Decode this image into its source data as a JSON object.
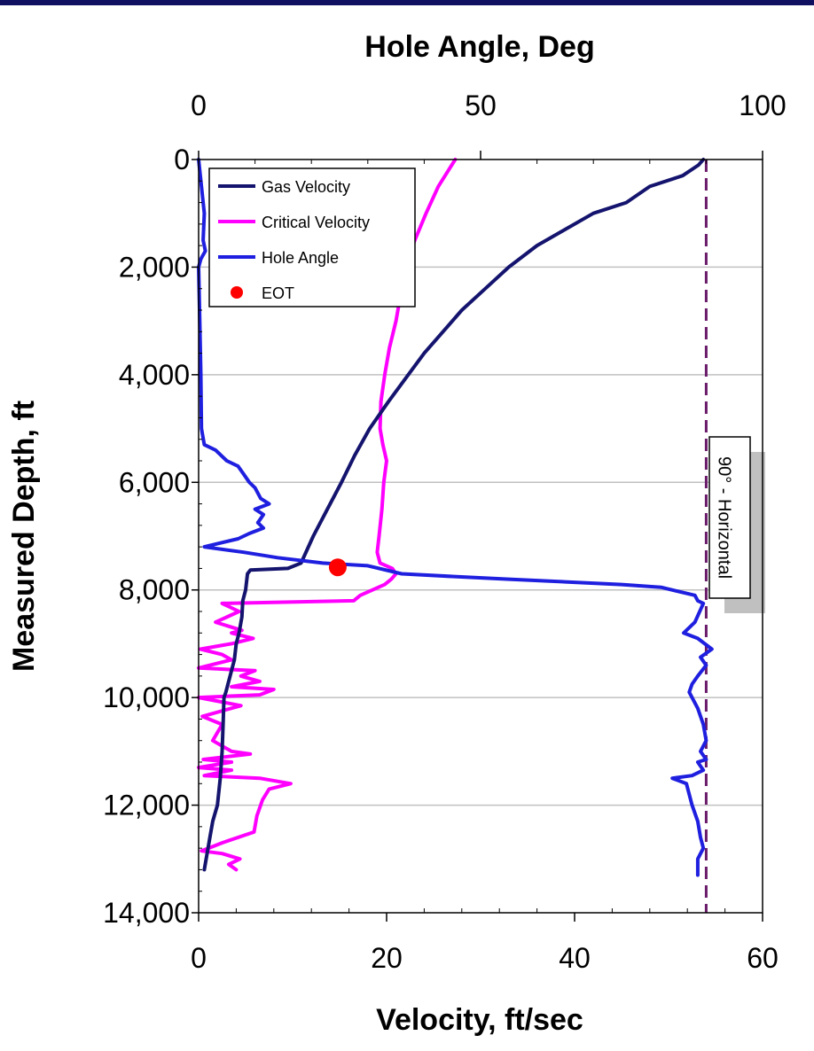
{
  "chart_data": {
    "type": "line",
    "title": "",
    "x_top": {
      "label": "Hole Angle, Deg",
      "range": [
        0,
        100
      ],
      "ticks": [
        "0",
        "50",
        "100"
      ]
    },
    "x_bottom": {
      "label": "Velocity, ft/sec",
      "range": [
        0,
        60
      ],
      "ticks": [
        "0",
        "20",
        "40",
        "60"
      ]
    },
    "y": {
      "label": "Measured Depth, ft",
      "range": [
        0,
        14000
      ],
      "inverted": true,
      "ticks": [
        "0",
        "2,000",
        "4,000",
        "6,000",
        "8,000",
        "10,000",
        "12,000",
        "14,000"
      ]
    },
    "grid": "horizontal",
    "legend": {
      "placement": "top-left"
    },
    "series": [
      {
        "name": "Gas Velocity",
        "axis": "bottom",
        "color": "#14146e",
        "points": [
          [
            53.7,
            0
          ],
          [
            53.2,
            100
          ],
          [
            51.5,
            300
          ],
          [
            48,
            500
          ],
          [
            45.5,
            800
          ],
          [
            42,
            1000
          ],
          [
            39,
            1300
          ],
          [
            36,
            1600
          ],
          [
            33,
            2000
          ],
          [
            30.5,
            2400
          ],
          [
            28,
            2800
          ],
          [
            26,
            3200
          ],
          [
            24,
            3600
          ],
          [
            22.3,
            4000
          ],
          [
            20.2,
            4500
          ],
          [
            18.2,
            5000
          ],
          [
            16.6,
            5500
          ],
          [
            15.2,
            6000
          ],
          [
            13.7,
            6500
          ],
          [
            12.2,
            7000
          ],
          [
            10.9,
            7500
          ],
          [
            9.5,
            7600
          ],
          [
            5.5,
            7630
          ],
          [
            5.2,
            7700
          ],
          [
            5.0,
            8000
          ],
          [
            4.7,
            8200
          ],
          [
            4.6,
            8500
          ],
          [
            4.3,
            8800
          ],
          [
            4.0,
            9000
          ],
          [
            3.8,
            9300
          ],
          [
            3.5,
            9500
          ],
          [
            3.2,
            9700
          ],
          [
            2.9,
            9900
          ],
          [
            2.7,
            10000
          ],
          [
            2.6,
            10500
          ],
          [
            2.5,
            11000
          ],
          [
            2.3,
            11500
          ],
          [
            2.0,
            12000
          ],
          [
            1.5,
            12300
          ],
          [
            1.2,
            12600
          ],
          [
            0.8,
            13000
          ],
          [
            0.6,
            13200
          ]
        ]
      },
      {
        "name": "Critical Velocity",
        "axis": "bottom",
        "color": "#ff00ff",
        "points": [
          [
            27.3,
            0
          ],
          [
            25.5,
            500
          ],
          [
            24.2,
            1000
          ],
          [
            23,
            1500
          ],
          [
            22,
            2000
          ],
          [
            21.5,
            2500
          ],
          [
            21,
            3000
          ],
          [
            20.3,
            3500
          ],
          [
            19.8,
            4000
          ],
          [
            19.4,
            4500
          ],
          [
            19.3,
            5000
          ],
          [
            19.6,
            5300
          ],
          [
            20,
            5600
          ],
          [
            19.7,
            6000
          ],
          [
            19.5,
            6500
          ],
          [
            19.2,
            7000
          ],
          [
            19,
            7300
          ],
          [
            19.3,
            7500
          ],
          [
            20.6,
            7600
          ],
          [
            21,
            7700
          ],
          [
            20.5,
            7800
          ],
          [
            19.8,
            7900
          ],
          [
            18.5,
            8000
          ],
          [
            17.2,
            8100
          ],
          [
            16.5,
            8200
          ],
          [
            2.5,
            8250
          ],
          [
            4.3,
            8400
          ],
          [
            1.8,
            8600
          ],
          [
            4.6,
            8750
          ],
          [
            3.5,
            8800
          ],
          [
            5.8,
            8900
          ],
          [
            3.5,
            9000
          ],
          [
            0.2,
            9100
          ],
          [
            2.5,
            9200
          ],
          [
            3.5,
            9300
          ],
          [
            0,
            9450
          ],
          [
            6.0,
            9500
          ],
          [
            4.5,
            9600
          ],
          [
            6.5,
            9700
          ],
          [
            3.5,
            9800
          ],
          [
            8,
            9850
          ],
          [
            6.5,
            9950
          ],
          [
            0,
            10000
          ],
          [
            4.5,
            10150
          ],
          [
            0.4,
            10350
          ],
          [
            2.5,
            10500
          ],
          [
            1.5,
            10800
          ],
          [
            3.5,
            11000
          ],
          [
            5.5,
            11050
          ],
          [
            0.5,
            11150
          ],
          [
            3.5,
            11200
          ],
          [
            0,
            11300
          ],
          [
            3.5,
            11350
          ],
          [
            0.6,
            11450
          ],
          [
            6.5,
            11500
          ],
          [
            9.8,
            11600
          ],
          [
            7.5,
            11700
          ],
          [
            6.8,
            11900
          ],
          [
            6.2,
            12200
          ],
          [
            5.9,
            12500
          ],
          [
            2.5,
            12700
          ],
          [
            0.3,
            12850
          ],
          [
            2.5,
            12900
          ],
          [
            4.4,
            13000
          ],
          [
            3.2,
            13100
          ],
          [
            4,
            13200
          ]
        ]
      },
      {
        "name": "Hole Angle",
        "axis": "top",
        "color": "#1f1fe0",
        "points": [
          [
            0,
            0
          ],
          [
            0.5,
            500
          ],
          [
            1,
            1000
          ],
          [
            0.8,
            1500
          ],
          [
            1.2,
            1700
          ],
          [
            0.4,
            1850
          ],
          [
            0,
            2000
          ],
          [
            0.2,
            3000
          ],
          [
            0.4,
            4000
          ],
          [
            0.5,
            5000
          ],
          [
            1,
            5300
          ],
          [
            3,
            5400
          ],
          [
            5,
            5600
          ],
          [
            7,
            5700
          ],
          [
            8,
            5850
          ],
          [
            9,
            6000
          ],
          [
            10,
            6100
          ],
          [
            11,
            6300
          ],
          [
            12.5,
            6400
          ],
          [
            10,
            6500
          ],
          [
            11.5,
            6600
          ],
          [
            10.5,
            6750
          ],
          [
            11.5,
            6850
          ],
          [
            9,
            6950
          ],
          [
            7,
            7050
          ],
          [
            1,
            7200
          ],
          [
            8,
            7300
          ],
          [
            14,
            7400
          ],
          [
            22,
            7500
          ],
          [
            30,
            7550
          ],
          [
            36,
            7700
          ],
          [
            45,
            7750
          ],
          [
            55,
            7800
          ],
          [
            65,
            7850
          ],
          [
            75,
            7900
          ],
          [
            82,
            7950
          ],
          [
            86,
            8050
          ],
          [
            88,
            8100
          ],
          [
            88.5,
            8200
          ],
          [
            89.5,
            8250
          ],
          [
            88,
            8600
          ],
          [
            86,
            8800
          ],
          [
            88.5,
            8900
          ],
          [
            91,
            9100
          ],
          [
            89,
            9250
          ],
          [
            90,
            9400
          ],
          [
            88.5,
            9600
          ],
          [
            87.5,
            9750
          ],
          [
            87,
            9900
          ],
          [
            88.5,
            10200
          ],
          [
            89.5,
            10500
          ],
          [
            90,
            10800
          ],
          [
            89,
            11000
          ],
          [
            90,
            11150
          ],
          [
            88.5,
            11200
          ],
          [
            89.5,
            11350
          ],
          [
            87.5,
            11450
          ],
          [
            84,
            11500
          ],
          [
            86.5,
            11600
          ],
          [
            87.5,
            12000
          ],
          [
            88.5,
            12300
          ],
          [
            89,
            12600
          ],
          [
            89.5,
            12800
          ],
          [
            88.5,
            13000
          ],
          [
            88.5,
            13300
          ]
        ]
      },
      {
        "name": "EOT",
        "axis": "bottom",
        "color": "#ff0000",
        "marker": "circle",
        "points": [
          [
            14.8,
            7580
          ]
        ]
      }
    ],
    "annotations": [
      {
        "text": "90° - Horizontal",
        "x_top": 90,
        "style": "dashed vertical line",
        "color": "#6a1b6a"
      }
    ]
  }
}
